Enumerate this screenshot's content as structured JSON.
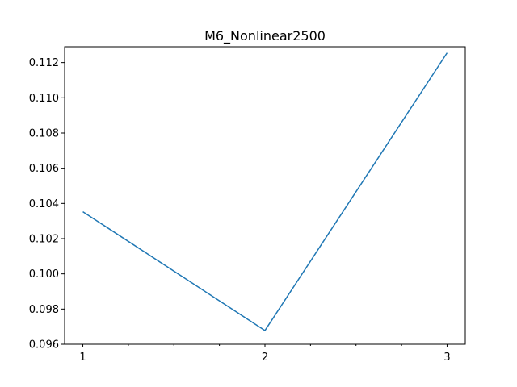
{
  "chart_data": {
    "type": "line",
    "title": "M6_Nonlinear2500",
    "xlabel": "",
    "ylabel": "",
    "xlim": [
      0.9,
      3.1
    ],
    "ylim": [
      0.096,
      0.1129
    ],
    "x_ticks": [
      1,
      2,
      3
    ],
    "x_tick_labels": [
      "1",
      "2",
      "3"
    ],
    "x_minor_ticks": [
      1.25,
      1.5,
      1.75,
      2.25,
      2.5,
      2.75
    ],
    "y_ticks": [
      0.096,
      0.098,
      0.1,
      0.102,
      0.104,
      0.106,
      0.108,
      0.11,
      0.112
    ],
    "y_tick_labels": [
      "0.096",
      "0.098",
      "0.100",
      "0.102",
      "0.104",
      "0.106",
      "0.108",
      "0.110",
      "0.112"
    ],
    "grid": false,
    "series": [
      {
        "x": [
          1,
          2,
          3
        ],
        "values": [
          0.10353,
          0.09678,
          0.11255
        ],
        "color": "#1f77b4"
      }
    ]
  }
}
